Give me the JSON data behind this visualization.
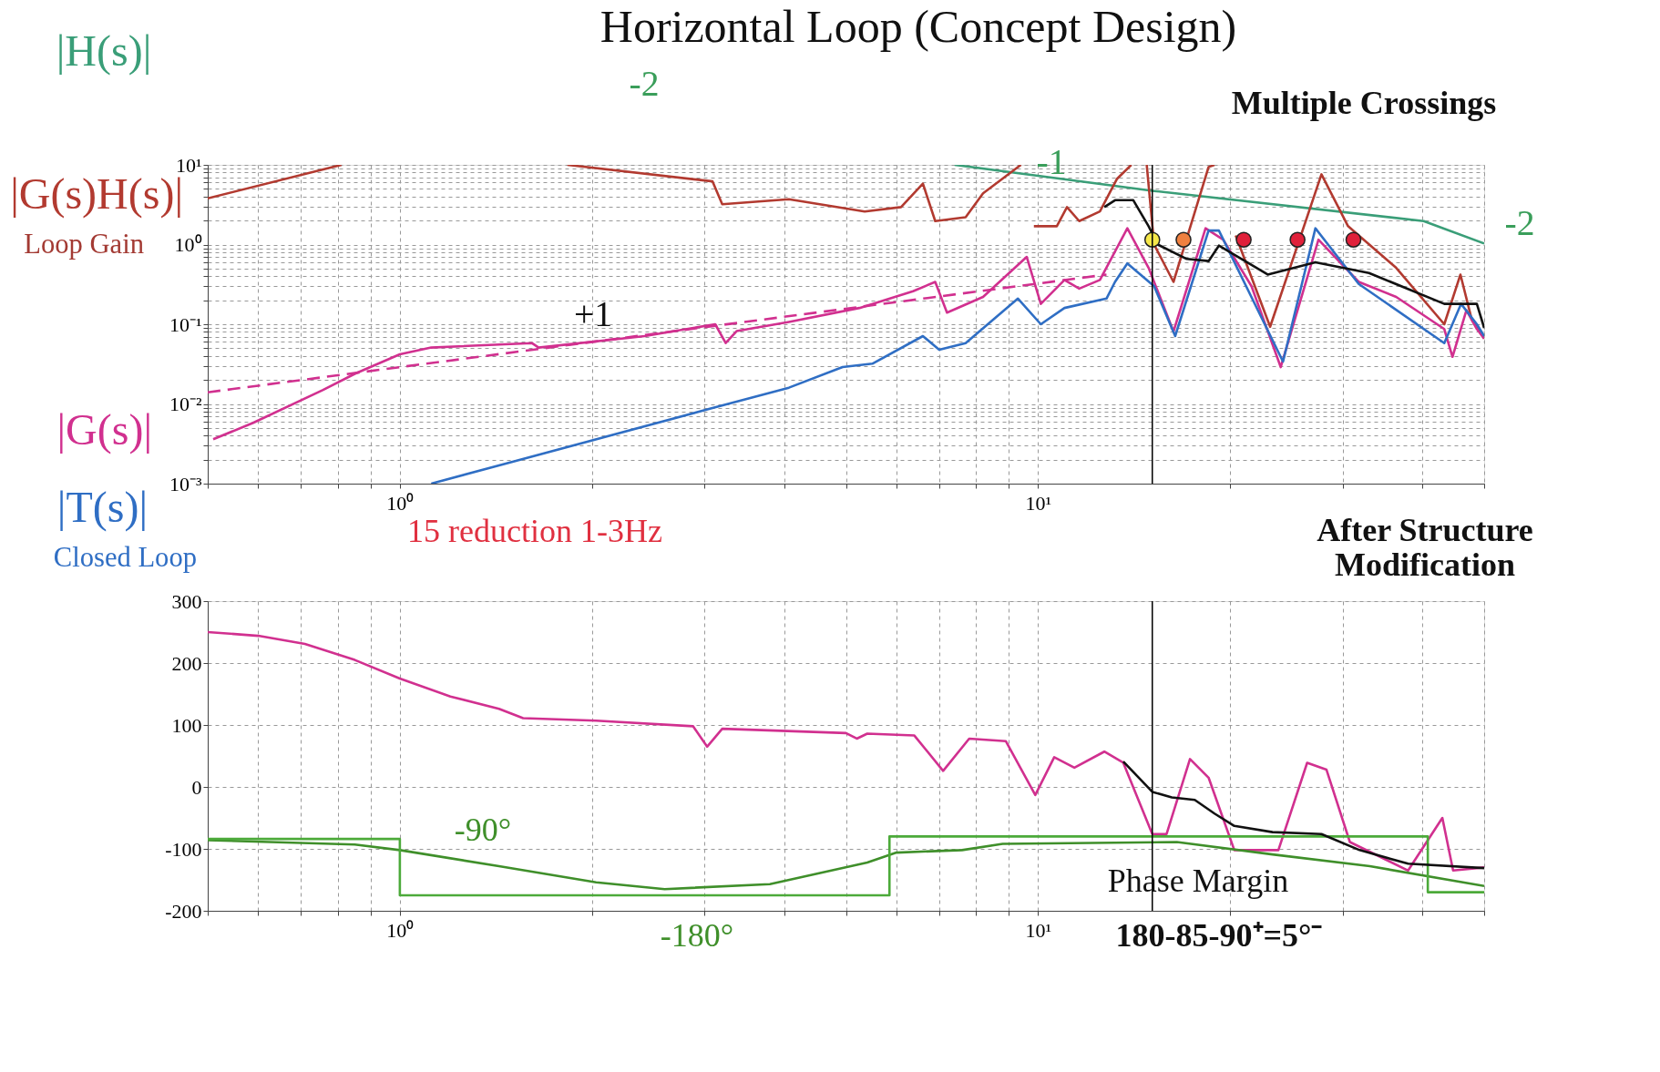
{
  "chart_data": [
    {
      "type": "line",
      "title": "Horizontal Loop (Concept Design)",
      "log": "xy",
      "grid": true,
      "xlim": [
        0.5,
        50
      ],
      "ylim": [
        0.001,
        10
      ],
      "xticks": [
        {
          "value": 0.5,
          "label": null
        },
        {
          "value": 0.6,
          "label": null
        },
        {
          "value": 0.7,
          "label": null
        },
        {
          "value": 0.8,
          "label": null
        },
        {
          "value": 0.9,
          "label": null
        },
        {
          "value": 1,
          "label": "10⁰"
        },
        {
          "value": 2,
          "label": null
        },
        {
          "value": 3,
          "label": null
        },
        {
          "value": 4,
          "label": null
        },
        {
          "value": 5,
          "label": null
        },
        {
          "value": 6,
          "label": null
        },
        {
          "value": 7,
          "label": null
        },
        {
          "value": 8,
          "label": null
        },
        {
          "value": 9,
          "label": null
        },
        {
          "value": 10,
          "label": "10¹"
        },
        {
          "value": 20,
          "label": null
        },
        {
          "value": 30,
          "label": null
        },
        {
          "value": 40,
          "label": null
        },
        {
          "value": 50,
          "label": null
        }
      ],
      "yticks": [
        {
          "value": 0.001,
          "label": "10⁻³"
        },
        {
          "value": 0.002,
          "label": null
        },
        {
          "value": 0.003,
          "label": null
        },
        {
          "value": 0.004,
          "label": null
        },
        {
          "value": 0.005,
          "label": null
        },
        {
          "value": 0.006,
          "label": null
        },
        {
          "value": 0.007,
          "label": null
        },
        {
          "value": 0.008,
          "label": null
        },
        {
          "value": 0.009,
          "label": null
        },
        {
          "value": 0.01,
          "label": "10⁻²"
        },
        {
          "value": 0.02,
          "label": null
        },
        {
          "value": 0.03,
          "label": null
        },
        {
          "value": 0.04,
          "label": null
        },
        {
          "value": 0.05,
          "label": null
        },
        {
          "value": 0.06,
          "label": null
        },
        {
          "value": 0.07,
          "label": null
        },
        {
          "value": 0.08,
          "label": null
        },
        {
          "value": 0.09,
          "label": null
        },
        {
          "value": 0.1,
          "label": "10⁻¹"
        },
        {
          "value": 0.2,
          "label": null
        },
        {
          "value": 0.3,
          "label": null
        },
        {
          "value": 0.4,
          "label": null
        },
        {
          "value": 0.5,
          "label": null
        },
        {
          "value": 0.6,
          "label": null
        },
        {
          "value": 0.7,
          "label": null
        },
        {
          "value": 0.8,
          "label": null
        },
        {
          "value": 0.9,
          "label": null
        },
        {
          "value": 1,
          "label": "10⁰"
        },
        {
          "value": 2,
          "label": null
        },
        {
          "value": 3,
          "label": null
        },
        {
          "value": 4,
          "label": null
        },
        {
          "value": 5,
          "label": null
        },
        {
          "value": 6,
          "label": null
        },
        {
          "value": 7,
          "label": null
        },
        {
          "value": 8,
          "label": null
        },
        {
          "value": 9,
          "label": null
        },
        {
          "value": 10,
          "label": "10¹"
        }
      ],
      "series": [
        {
          "name": "|H(s)|",
          "color": "#3a9e78",
          "x": [
            7.4,
            15.2,
            40.2,
            50
          ],
          "values": [
            10,
            4.7,
            1.97,
            1.03
          ]
        },
        {
          "name": "|G(s)H(s)|",
          "color": "#b23a30",
          "x": [
            0.5,
            0.81,
            1.0,
            1.83,
            3.09,
            3.2,
            4.07,
            5.35,
            6.1,
            6.6,
            6.9,
            7.7,
            8.2,
            9.4,
            9.6,
            9.85,
            10.7,
            11.1,
            11.6,
            12.5,
            13.3,
            14.0,
            14.4,
            14.8,
            15.2,
            16.3,
            18.5,
            18.9,
            19.5,
            20.4,
            23.1,
            27.8,
            30.6,
            36.4,
            43.3,
            45.9,
            47.8,
            50
          ],
          "values": [
            3.8,
            10,
            null,
            10,
            6.2,
            3.2,
            3.7,
            2.6,
            2.95,
            5.8,
            1.97,
            2.2,
            4.4,
            10,
            null,
            1.7,
            1.7,
            2.95,
            1.97,
            2.6,
            6.7,
            10,
            null,
            10,
            1.0,
            0.34,
            9.4,
            10,
            null,
            1.3,
            0.093,
            7.6,
            1.7,
            0.51,
            0.1,
            0.42,
            0.115,
            0.066
          ]
        },
        {
          "name": "|G(s)|",
          "color": "#d1308f",
          "x": [
            0.51,
            0.589,
            0.758,
            0.851,
            1.0,
            1.12,
            1.61,
            1.65,
            2.42,
            3.12,
            3.24,
            3.37,
            4.07,
            5.25,
            6.37,
            6.9,
            7.2,
            8.2,
            9.6,
            10.1,
            11.0,
            11.6,
            12.5,
            13.8,
            14.9,
            16.3,
            18.3,
            19.5,
            21.6,
            24.0,
            27.5,
            31.8,
            36.4,
            43.3,
            44.6,
            46.9,
            48.7,
            50
          ],
          "values": [
            0.0036,
            0.0058,
            0.015,
            0.024,
            0.042,
            0.051,
            0.058,
            0.051,
            0.071,
            0.1,
            0.058,
            0.082,
            0.107,
            0.16,
            0.26,
            0.34,
            0.14,
            0.22,
            0.7,
            0.18,
            0.36,
            0.28,
            0.36,
            1.6,
            0.51,
            0.081,
            1.6,
            1.15,
            0.3,
            0.029,
            1.15,
            0.34,
            0.22,
            0.087,
            0.039,
            0.15,
            0.087,
            0.066
          ]
        },
        {
          "color": "#d1308f",
          "line_style": "dashed",
          "x": [
            0.5,
            12.8
          ],
          "values": [
            0.014,
            0.42
          ]
        },
        {
          "name": "|T(s)|",
          "color": "#2f6ec4",
          "x": [
            1.12,
            3.06,
            4.07,
            4.94,
            5.5,
            6.6,
            7.0,
            7.7,
            9.3,
            10.1,
            11.0,
            12.8,
            13.2,
            13.8,
            15.2,
            16.4,
            18.5,
            19.2,
            24.2,
            27.2,
            31.8,
            43.3,
            46,
            48.7,
            50
          ],
          "values": [
            0.001,
            0.0087,
            0.016,
            0.029,
            0.032,
            0.071,
            0.048,
            0.058,
            0.21,
            0.1,
            0.16,
            0.21,
            0.34,
            0.58,
            0.3,
            0.071,
            1.5,
            1.5,
            0.034,
            1.6,
            0.32,
            0.058,
            0.18,
            0.1,
            0.071
          ]
        },
        {
          "color": "#111111",
          "x": [
            12.7,
            13.2,
            14.1,
            14.9,
            15.4,
            17.1,
            18.5,
            19.2,
            22.9,
            27.2,
            33.0,
            43.3,
            48.7,
            50
          ],
          "values": [
            2.95,
            3.6,
            3.6,
            1.7,
            1.0,
            0.66,
            0.62,
            0.97,
            0.42,
            0.6,
            0.44,
            0.18,
            0.18,
            0.09
          ]
        },
        {
          "type": "scatter",
          "marker": "circle",
          "x": [
            15.1,
            16.9,
            21.0,
            25.5,
            31.2
          ],
          "values": [
            1.15,
            1.15,
            1.15,
            1.15,
            1.15
          ],
          "colors": [
            "#f6e84a",
            "#f08040",
            "#e0203a",
            "#e0203a",
            "#e0203a"
          ]
        }
      ],
      "ref_lines": [
        {
          "axis": "x",
          "value": 15.1,
          "color": "#000000"
        }
      ],
      "annotations": [
        "Loop Gain",
        "Closed Loop",
        "-2",
        "-1",
        "-2",
        "+1",
        "Multiple Crossings",
        "15 reduction 1-3Hz",
        "After Structure\nModification"
      ]
    },
    {
      "type": "line",
      "log": "x",
      "grid": true,
      "xlim": [
        0.5,
        50
      ],
      "ylim": [
        -200,
        300
      ],
      "xticks": [
        {
          "value": 0.5,
          "label": null
        },
        {
          "value": 0.6,
          "label": null
        },
        {
          "value": 0.7,
          "label": null
        },
        {
          "value": 0.8,
          "label": null
        },
        {
          "value": 0.9,
          "label": null
        },
        {
          "value": 1,
          "label": "10⁰"
        },
        {
          "value": 2,
          "label": null
        },
        {
          "value": 3,
          "label": null
        },
        {
          "value": 4,
          "label": null
        },
        {
          "value": 5,
          "label": null
        },
        {
          "value": 6,
          "label": null
        },
        {
          "value": 7,
          "label": null
        },
        {
          "value": 8,
          "label": null
        },
        {
          "value": 9,
          "label": null
        },
        {
          "value": 10,
          "label": "10¹"
        },
        {
          "value": 20,
          "label": null
        },
        {
          "value": 30,
          "label": null
        },
        {
          "value": 40,
          "label": null
        },
        {
          "value": 50,
          "label": null
        }
      ],
      "yticks": [
        -200,
        -100,
        0,
        100,
        200,
        300
      ],
      "series": [
        {
          "color": "#d1308f",
          "x": [
            0.5,
            0.6,
            0.71,
            0.85,
            1.0,
            1.2,
            1.43,
            1.56,
            2.03,
            2.88,
            3.03,
            3.2,
            5.0,
            5.2,
            5.4,
            6.4,
            7.1,
            7.8,
            8.9,
            9.9,
            10.6,
            11.4,
            12.7,
            13.6,
            15.1,
            15.9,
            17.3,
            18.5,
            20.3,
            23.8,
            26.4,
            28.3,
            30.8,
            38,
            43,
            44.7,
            50
          ],
          "values": [
            250,
            244,
            231,
            205,
            175,
            146,
            126,
            111,
            107,
            98,
            65,
            94,
            87,
            78,
            86,
            83,
            26,
            78,
            74,
            -13,
            48,
            31,
            57,
            39,
            -76,
            -76,
            45,
            15,
            -102,
            -102,
            39,
            28,
            -89,
            -135,
            -50,
            -135,
            -130
          ]
        },
        {
          "color": "#3f8f2a",
          "x": [
            0.5,
            0.85,
            1.0,
            1.43,
            2.03,
            2.6,
            3.8,
            5.4,
            6.0,
            7.6,
            8.8,
            16.5,
            23.3,
            33.1,
            50
          ],
          "values": [
            -86,
            -93,
            -102,
            -128,
            -154,
            -165,
            -157,
            -122,
            -106,
            -102,
            -92,
            -89,
            -109,
            -128,
            -160
          ]
        },
        {
          "color": "#4caa3a",
          "x": [
            0.5,
            1.0,
            1.0,
            5.85,
            5.85,
            40.8,
            40.8,
            50
          ],
          "values": [
            -84,
            -84,
            -175,
            -175,
            -80,
            -80,
            -170,
            -170
          ]
        },
        {
          "color": "#111111",
          "x": [
            13.6,
            15.1,
            16.2,
            17.6,
            18.9,
            20.3,
            23.3,
            27.8,
            31.9,
            38,
            50
          ],
          "values": [
            41,
            -8,
            -17,
            -21,
            -43,
            -63,
            -73,
            -76,
            -102,
            -124,
            -131
          ]
        }
      ],
      "ref_lines": [
        {
          "axis": "x",
          "value": 15.1,
          "color": "#000000"
        }
      ],
      "annotations": [
        "-90°",
        "-180°",
        "Phase Margin",
        "180-85-90⁺=5°⁻"
      ]
    }
  ]
}
